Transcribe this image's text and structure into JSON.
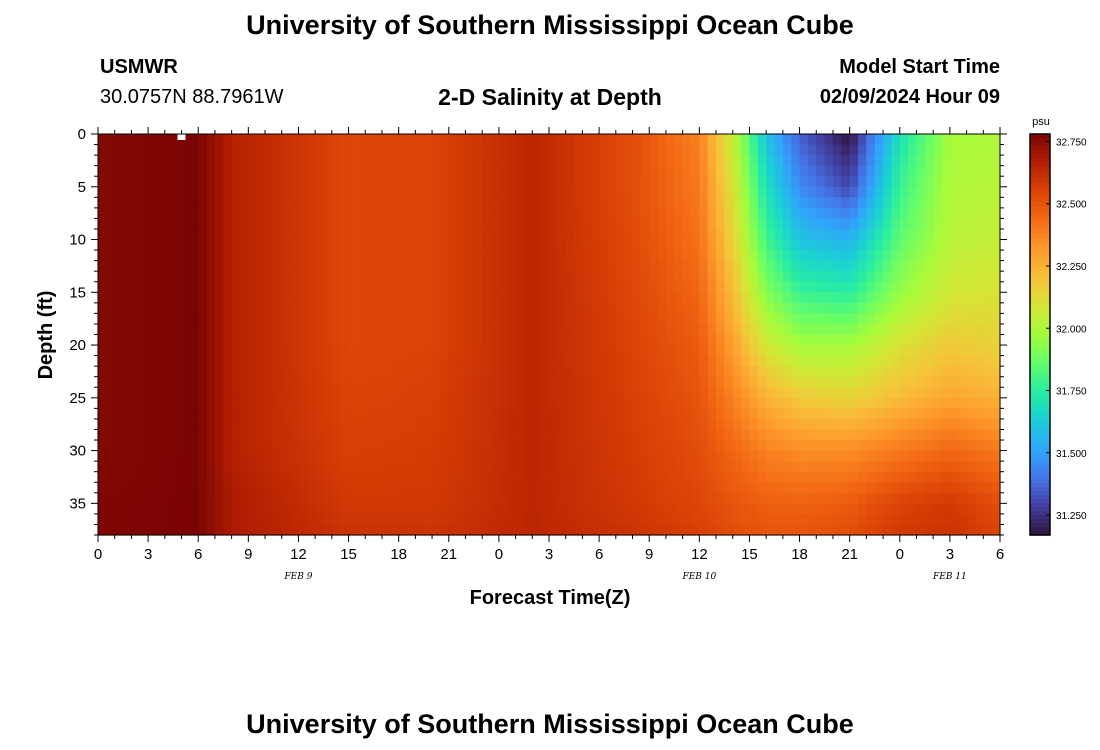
{
  "header": {
    "title": "University of Southern Mississippi Ocean Cube",
    "station": "USMWR",
    "coords": "30.0757N  88.7961W",
    "subtitle": "2-D Salinity at Depth",
    "model_start_label": "Model Start Time",
    "model_start_value": "02/09/2024 Hour 09"
  },
  "footer": {
    "title": "University of Southern Mississippi Ocean Cube"
  },
  "chart_data": {
    "type": "heatmap",
    "xlabel": "Forecast Time(Z)",
    "ylabel": "Depth (ft)",
    "x_tick_labels": [
      "0",
      "3",
      "6",
      "9",
      "12",
      "15",
      "18",
      "21",
      "0",
      "3",
      "6",
      "9",
      "12",
      "15",
      "18",
      "21",
      "0",
      "3",
      "6"
    ],
    "x_range_hours": [
      0,
      54
    ],
    "date_labels": [
      {
        "label": "FEB 9",
        "hour": 12
      },
      {
        "label": "FEB 10",
        "hour": 36
      },
      {
        "label": "FEB 11",
        "hour": 51
      }
    ],
    "y_ticks": [
      0,
      5,
      10,
      15,
      20,
      25,
      30,
      35
    ],
    "y_range": [
      0,
      38
    ],
    "y_inverted": true,
    "colorbar": {
      "unit": "psu",
      "min": 31.17,
      "max": 32.78,
      "ticks": [
        "32.750",
        "32.500",
        "32.250",
        "32.000",
        "31.750",
        "31.500",
        "31.250"
      ],
      "tick_values": [
        32.75,
        32.5,
        32.25,
        32.0,
        31.75,
        31.5,
        31.25
      ],
      "colormap": "turbo"
    },
    "salinity_psu": {
      "description_depths_ft": [
        0,
        5,
        10,
        15,
        20,
        25,
        30,
        35,
        38
      ],
      "times_h": [
        0,
        6,
        8,
        15,
        20,
        26,
        32,
        36,
        38,
        40,
        42,
        45,
        48,
        51,
        54
      ],
      "values": [
        [
          32.76,
          32.78,
          32.66,
          32.54,
          32.55,
          32.64,
          32.52,
          32.38,
          32.05,
          31.6,
          31.35,
          31.17,
          31.7,
          31.98,
          32.0
        ],
        [
          32.76,
          32.78,
          32.66,
          32.54,
          32.55,
          32.64,
          32.52,
          32.4,
          32.1,
          31.7,
          31.45,
          31.3,
          31.78,
          32.0,
          32.02
        ],
        [
          32.76,
          32.78,
          32.66,
          32.54,
          32.55,
          32.64,
          32.53,
          32.42,
          32.15,
          31.8,
          31.6,
          31.55,
          31.85,
          32.02,
          32.05
        ],
        [
          32.76,
          32.78,
          32.66,
          32.54,
          32.55,
          32.64,
          32.54,
          32.45,
          32.22,
          31.92,
          31.78,
          31.75,
          31.95,
          32.08,
          32.1
        ],
        [
          32.76,
          32.78,
          32.66,
          32.54,
          32.55,
          32.64,
          32.55,
          32.48,
          32.3,
          32.08,
          31.98,
          31.98,
          32.1,
          32.18,
          32.15
        ],
        [
          32.76,
          32.78,
          32.66,
          32.55,
          32.56,
          32.64,
          32.56,
          32.5,
          32.38,
          32.25,
          32.18,
          32.15,
          32.22,
          32.28,
          32.25
        ],
        [
          32.76,
          32.78,
          32.66,
          32.56,
          32.57,
          32.64,
          32.57,
          32.52,
          32.45,
          32.38,
          32.35,
          32.35,
          32.4,
          32.45,
          32.4
        ],
        [
          32.77,
          32.78,
          32.68,
          32.58,
          32.58,
          32.64,
          32.58,
          32.54,
          32.5,
          32.47,
          32.46,
          32.48,
          32.55,
          32.58,
          32.52
        ],
        [
          32.77,
          32.78,
          32.68,
          32.6,
          32.6,
          32.64,
          32.6,
          32.56,
          32.52,
          32.5,
          32.5,
          32.52,
          32.58,
          32.6,
          32.55
        ]
      ]
    },
    "missing_marker_hour": 5
  }
}
